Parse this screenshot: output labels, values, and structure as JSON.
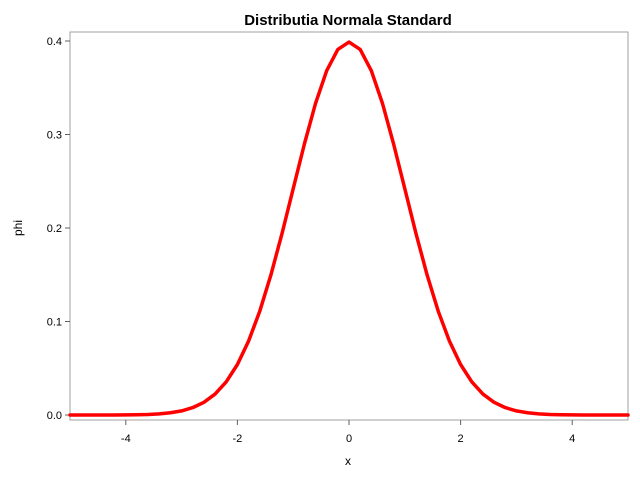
{
  "chart_data": {
    "type": "line",
    "title": "Distributia Normala Standard",
    "xlabel": "x",
    "ylabel": "phi",
    "xlim": [
      -5,
      5
    ],
    "ylim": [
      0,
      0.4
    ],
    "x_ticks": [
      -4,
      -2,
      0,
      2,
      4
    ],
    "x_tick_labels": [
      "-4",
      "-2",
      "0",
      "2",
      "4"
    ],
    "y_ticks": [
      0.0,
      0.1,
      0.2,
      0.3,
      0.4
    ],
    "y_tick_labels": [
      "0.0",
      "0.1",
      "0.2",
      "0.3",
      "0.4"
    ],
    "grid": false,
    "legend": "none",
    "line_color": "#ff0000",
    "series": [
      {
        "x": [
          -5.0,
          -4.8,
          -4.6,
          -4.4,
          -4.2,
          -4.0,
          -3.8,
          -3.6,
          -3.4,
          -3.2,
          -3.0,
          -2.8,
          -2.6,
          -2.4,
          -2.2,
          -2.0,
          -1.8,
          -1.6,
          -1.4,
          -1.2,
          -1.0,
          -0.8,
          -0.6,
          -0.4,
          -0.2,
          0.0,
          0.2,
          0.4,
          0.6,
          0.8,
          1.0,
          1.2,
          1.4,
          1.6,
          1.8,
          2.0,
          2.2,
          2.4,
          2.6,
          2.8,
          3.0,
          3.2,
          3.4,
          3.6,
          3.8,
          4.0,
          4.2,
          4.4,
          4.6,
          4.8,
          5.0
        ],
        "values": [
          0.0,
          0.0,
          0.0,
          0.0,
          0.0,
          0.0001,
          0.0003,
          0.0006,
          0.0012,
          0.0024,
          0.0044,
          0.0079,
          0.0136,
          0.0224,
          0.0355,
          0.054,
          0.079,
          0.1109,
          0.1497,
          0.1942,
          0.242,
          0.2897,
          0.3332,
          0.3683,
          0.391,
          0.3989,
          0.391,
          0.3683,
          0.3332,
          0.2897,
          0.242,
          0.1942,
          0.1497,
          0.1109,
          0.079,
          0.054,
          0.0355,
          0.0224,
          0.0136,
          0.0079,
          0.0044,
          0.0024,
          0.0012,
          0.0006,
          0.0003,
          0.0001,
          0.0,
          0.0,
          0.0,
          0.0,
          0.0
        ]
      }
    ]
  }
}
